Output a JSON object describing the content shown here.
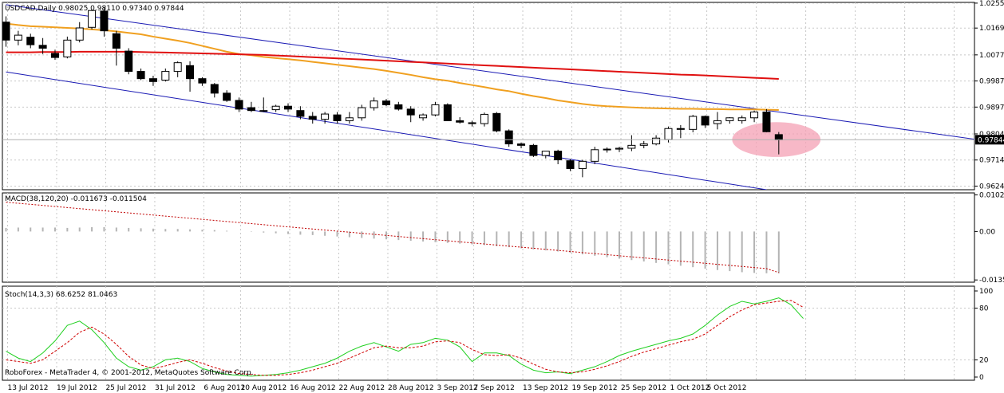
{
  "window": {
    "symbol_header": "USDCAD,Daily  0.98025 0.98110 0.97340 0.97844",
    "macd_header": "MACD(38,120,20) -0.011673 -0.011504",
    "stoch_header": "Stoch(14,3,3) 68.6252 81.0463",
    "watermark": "RoboForex - MetaTrader 4, © 2001-2012, MetaQuotes Software Corp."
  },
  "colors": {
    "background": "#ffffff",
    "grid": "#c8c8c8",
    "ma_slow": "#e01010",
    "ma_fast": "#f0a020",
    "channel": "#1a1ab4",
    "highlight": "#f4a0b4",
    "macd_hist": "#b4b4b4",
    "macd_signal": "#c00000",
    "stoch_main": "#20d020",
    "stoch_signal": "#d00000"
  },
  "chart_data": [
    {
      "type": "candlestick",
      "title": "USDCAD,Daily",
      "price_axis_labels": [
        "1.02555",
        "1.01695",
        "1.00770",
        "0.99870",
        "0.98970",
        "0.98045",
        "0.97145",
        "0.96245"
      ],
      "current_price_label": "0.97844",
      "ylim": [
        0.9612,
        1.0258
      ],
      "date_labels": [
        "13 Jul 2012",
        "19 Jul 2012",
        "25 Jul 2012",
        "31 Jul 2012",
        "6 Aug 2012",
        "10 Aug 2012",
        "16 Aug 2012",
        "22 Aug 2012",
        "28 Aug 2012",
        "3 Sep 2012",
        "7 Sep 2012",
        "13 Sep 2012",
        "19 Sep 2012",
        "25 Sep 2012",
        "1 Oct 2012",
        "5 Oct 2012"
      ],
      "candles": [
        [
          1.019,
          1.021,
          1.0105,
          1.0128
        ],
        [
          1.0128,
          1.016,
          1.011,
          1.0145
        ],
        [
          1.0138,
          1.015,
          1.01,
          1.0112
        ],
        [
          1.011,
          1.0135,
          1.008,
          1.01
        ],
        [
          1.0082,
          1.0095,
          1.006,
          1.0068
        ],
        [
          1.007,
          1.014,
          1.0065,
          1.0128
        ],
        [
          1.0128,
          1.019,
          1.012,
          1.017
        ],
        [
          1.0172,
          1.0232,
          1.0165,
          1.023
        ],
        [
          1.0228,
          1.024,
          1.014,
          1.016
        ],
        [
          1.015,
          1.016,
          1.004,
          1.01
        ],
        [
          1.009,
          1.01,
          1.001,
          1.002
        ],
        [
          1.002,
          1.003,
          0.999,
          0.9995
        ],
        [
          0.9995,
          1.0005,
          0.997,
          0.9985
        ],
        [
          0.999,
          1.003,
          0.9985,
          1.002
        ],
        [
          1.002,
          1.0055,
          1.0,
          1.005
        ],
        [
          1.004,
          1.0055,
          0.995,
          0.9995
        ],
        [
          0.9995,
          1.0,
          0.997,
          0.998
        ],
        [
          0.9975,
          0.998,
          0.993,
          0.9945
        ],
        [
          0.9945,
          0.9955,
          0.9915,
          0.992
        ],
        [
          0.992,
          0.993,
          0.988,
          0.989
        ],
        [
          0.9895,
          0.9915,
          0.988,
          0.9885
        ],
        [
          0.9885,
          0.993,
          0.988,
          0.9885
        ],
        [
          0.9888,
          0.9905,
          0.988,
          0.99
        ],
        [
          0.99,
          0.991,
          0.988,
          0.989
        ],
        [
          0.9885,
          0.99,
          0.9855,
          0.9865
        ],
        [
          0.9865,
          0.988,
          0.984,
          0.9855
        ],
        [
          0.9855,
          0.988,
          0.984,
          0.9873
        ],
        [
          0.987,
          0.988,
          0.984,
          0.985
        ],
        [
          0.985,
          0.988,
          0.984,
          0.986
        ],
        [
          0.986,
          0.9905,
          0.985,
          0.9895
        ],
        [
          0.9895,
          0.993,
          0.9885,
          0.9918
        ],
        [
          0.9918,
          0.9925,
          0.99,
          0.9905
        ],
        [
          0.9905,
          0.9915,
          0.9885,
          0.989
        ],
        [
          0.989,
          0.99,
          0.9845,
          0.987
        ],
        [
          0.986,
          0.9875,
          0.985,
          0.987
        ],
        [
          0.987,
          0.9915,
          0.9865,
          0.9905
        ],
        [
          0.9905,
          0.991,
          0.985,
          0.985
        ],
        [
          0.985,
          0.9862,
          0.984,
          0.9845
        ],
        [
          0.9843,
          0.985,
          0.983,
          0.984
        ],
        [
          0.984,
          0.9878,
          0.983,
          0.9872
        ],
        [
          0.9875,
          0.988,
          0.981,
          0.9815
        ],
        [
          0.9815,
          0.982,
          0.976,
          0.977
        ],
        [
          0.977,
          0.9775,
          0.9755,
          0.9765
        ],
        [
          0.9765,
          0.977,
          0.9725,
          0.973
        ],
        [
          0.973,
          0.9745,
          0.972,
          0.9745
        ],
        [
          0.9745,
          0.975,
          0.97,
          0.9715
        ],
        [
          0.9712,
          0.9718,
          0.9676,
          0.9685
        ],
        [
          0.9685,
          0.9715,
          0.9655,
          0.971
        ],
        [
          0.971,
          0.976,
          0.97,
          0.975
        ],
        [
          0.975,
          0.9758,
          0.974,
          0.9752
        ],
        [
          0.9752,
          0.976,
          0.9742,
          0.9755
        ],
        [
          0.9755,
          0.98,
          0.9745,
          0.9765
        ],
        [
          0.9765,
          0.978,
          0.9755,
          0.977
        ],
        [
          0.977,
          0.98,
          0.9765,
          0.979
        ],
        [
          0.9785,
          0.983,
          0.9775,
          0.9823
        ],
        [
          0.9823,
          0.9835,
          0.979,
          0.982
        ],
        [
          0.982,
          0.987,
          0.981,
          0.9865
        ],
        [
          0.9865,
          0.9868,
          0.9825,
          0.9835
        ],
        [
          0.984,
          0.988,
          0.982,
          0.985
        ],
        [
          0.985,
          0.9862,
          0.984,
          0.986
        ],
        [
          0.985,
          0.9868,
          0.984,
          0.986
        ],
        [
          0.986,
          0.9885,
          0.9845,
          0.988
        ],
        [
          0.988,
          0.989,
          0.981,
          0.9812
        ],
        [
          0.9802,
          0.9811,
          0.9734,
          0.9784
        ]
      ],
      "moving_averages": [
        {
          "color_key": "ma_fast",
          "values": [
            1.0185,
            1.018,
            1.0176,
            1.0174,
            1.0172,
            1.017,
            1.0168,
            1.0165,
            1.0162,
            1.0158,
            1.0153,
            1.0148,
            1.014,
            1.0133,
            1.0126,
            1.0118,
            1.0108,
            1.0098,
            1.0088,
            1.008,
            1.0076,
            1.007,
            1.0066,
            1.0062,
            1.0058,
            1.0053,
            1.0048,
            1.0043,
            1.0038,
            1.0033,
            1.0028,
            1.0022,
            1.0015,
            1.0008,
            1.0,
            0.9993,
            0.9988,
            0.998,
            0.9973,
            0.9966,
            0.9958,
            0.9952,
            0.9943,
            0.9935,
            0.9928,
            0.992,
            0.9914,
            0.9908,
            0.9903,
            0.99,
            0.9898,
            0.9896,
            0.9894,
            0.9893,
            0.9892,
            0.9891,
            0.9891,
            0.989,
            0.989,
            0.9889,
            0.9889,
            0.9889,
            0.9888,
            0.9887
          ]
        },
        {
          "color_key": "ma_slow",
          "values": [
            1.0086,
            1.0086,
            1.0086,
            1.0087,
            1.0087,
            1.0087,
            1.0088,
            1.0088,
            1.0088,
            1.0088,
            1.0088,
            1.0087,
            1.0086,
            1.0085,
            1.0084,
            1.0083,
            1.0082,
            1.0081,
            1.008,
            1.0079,
            1.0078,
            1.0077,
            1.0075,
            1.0073,
            1.0071,
            1.0069,
            1.0067,
            1.0065,
            1.0063,
            1.0061,
            1.0059,
            1.0057,
            1.0055,
            1.0053,
            1.0051,
            1.0049,
            1.0047,
            1.0045,
            1.0043,
            1.0041,
            1.0039,
            1.0037,
            1.0035,
            1.0033,
            1.0031,
            1.0029,
            1.0027,
            1.0025,
            1.0023,
            1.0021,
            1.0019,
            1.0017,
            1.0015,
            1.0013,
            1.0011,
            1.0009,
            1.0008,
            1.0006,
            1.0004,
            1.0002,
            1.0,
            0.9998,
            0.9996,
            0.9994
          ]
        }
      ],
      "channel_lines": [
        {
          "color_key": "channel",
          "from": [
            0,
            1.025
          ],
          "to": [
            80,
            0.978
          ]
        },
        {
          "color_key": "channel",
          "from": [
            0,
            1.0018
          ],
          "to": [
            62,
            0.9612
          ]
        }
      ],
      "highlight_ellipse": {
        "center_index": 62.8,
        "center_price": 0.9785,
        "radius_bars": 3.6,
        "radius_price": 0.006
      }
    },
    {
      "type": "bar",
      "title": "MACD(38,120,20)",
      "ylim": [
        -0.0142,
        0.0108
      ],
      "y_tick_labels": [
        "0.01026",
        "0.00",
        "-0.01357"
      ],
      "histogram": [
        0.001,
        0.0011,
        0.0011,
        0.0011,
        0.0011,
        0.001,
        0.0011,
        0.0012,
        0.0012,
        0.0011,
        0.001,
        0.0009,
        0.0008,
        0.0007,
        0.0007,
        0.0006,
        0.0005,
        0.0004,
        0.0002,
        0.0,
        -0.0001,
        -0.0003,
        -0.0005,
        -0.0007,
        -0.0009,
        -0.001,
        -0.0012,
        -0.0014,
        -0.0016,
        -0.0018,
        -0.002,
        -0.0022,
        -0.0024,
        -0.0026,
        -0.0028,
        -0.003,
        -0.0032,
        -0.0034,
        -0.0036,
        -0.0038,
        -0.0041,
        -0.0044,
        -0.0047,
        -0.005,
        -0.0053,
        -0.0056,
        -0.006,
        -0.0064,
        -0.0068,
        -0.0072,
        -0.0076,
        -0.008,
        -0.0084,
        -0.0088,
        -0.0092,
        -0.0096,
        -0.01,
        -0.0104,
        -0.0108,
        -0.0111,
        -0.0114,
        -0.0116,
        -0.0117,
        -0.0117
      ],
      "signal": [
        0.0082,
        0.0079,
        0.0076,
        0.0073,
        0.007,
        0.0067,
        0.0064,
        0.0061,
        0.0058,
        0.0055,
        0.0052,
        0.0049,
        0.0046,
        0.0043,
        0.004,
        0.0037,
        0.0034,
        0.0031,
        0.0028,
        0.0025,
        0.0022,
        0.0019,
        0.0016,
        0.0013,
        0.001,
        0.0007,
        0.0004,
        0.0001,
        -0.0002,
        -0.0005,
        -0.0008,
        -0.0011,
        -0.0014,
        -0.0017,
        -0.002,
        -0.0023,
        -0.0026,
        -0.0029,
        -0.0032,
        -0.0035,
        -0.0038,
        -0.0041,
        -0.0044,
        -0.0047,
        -0.005,
        -0.0053,
        -0.0056,
        -0.0059,
        -0.0062,
        -0.0065,
        -0.0068,
        -0.0071,
        -0.0074,
        -0.0077,
        -0.008,
        -0.0083,
        -0.0086,
        -0.0089,
        -0.0092,
        -0.0095,
        -0.0098,
        -0.0101,
        -0.0104,
        -0.0115
      ]
    },
    {
      "type": "line",
      "title": "Stoch(14,3,3)",
      "ylim": [
        0,
        100
      ],
      "y_tick_labels": [
        "100",
        "80",
        "20",
        "0"
      ],
      "series": [
        {
          "color_key": "stoch_main",
          "values": [
            30,
            22,
            18,
            28,
            42,
            60,
            65,
            55,
            40,
            22,
            12,
            8,
            12,
            20,
            22,
            18,
            10,
            6,
            3,
            2,
            1,
            2,
            3,
            5,
            8,
            12,
            16,
            22,
            30,
            36,
            40,
            35,
            30,
            38,
            40,
            45,
            43,
            35,
            18,
            28,
            28,
            25,
            15,
            8,
            5,
            6,
            4,
            8,
            12,
            18,
            25,
            30,
            34,
            38,
            42,
            45,
            50,
            60,
            72,
            82,
            88,
            85,
            88,
            92,
            84,
            68
          ]
        },
        {
          "color_key": "stoch_signal",
          "values": [
            20,
            18,
            16,
            20,
            30,
            40,
            52,
            58,
            50,
            38,
            24,
            14,
            10,
            13,
            17,
            20,
            16,
            11,
            7,
            4,
            3,
            2,
            2,
            3,
            5,
            8,
            12,
            16,
            22,
            28,
            34,
            36,
            34,
            34,
            36,
            41,
            42,
            40,
            32,
            26,
            25,
            26,
            22,
            15,
            9,
            6,
            5,
            6,
            9,
            13,
            18,
            24,
            29,
            33,
            37,
            41,
            44,
            50,
            60,
            70,
            78,
            84,
            86,
            88,
            89,
            81
          ]
        }
      ]
    }
  ]
}
